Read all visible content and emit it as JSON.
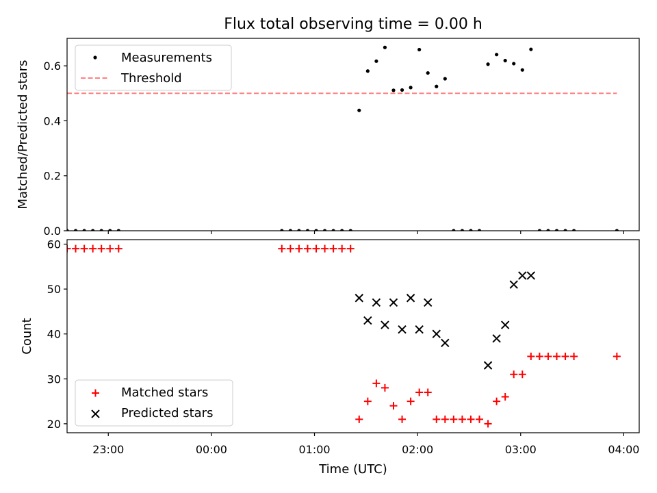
{
  "title": "Flux total observing time = 0.00 h",
  "colors": {
    "measurement": "#000000",
    "threshold": "#ff8080",
    "matched": "#ff0000",
    "predicted": "#000000",
    "axes": "#000000"
  },
  "chart_data": [
    {
      "type": "scatter",
      "ylabel": "Matched/Predicted stars",
      "ylim": [
        0,
        0.7
      ],
      "yticks": [
        "0.0",
        "0.2",
        "0.4",
        "0.6"
      ],
      "legend": {
        "placement": "top-left",
        "entries": [
          "Measurements",
          "Threshold"
        ]
      },
      "threshold": {
        "name": "Threshold",
        "value": 0.5,
        "x_range": [
          "22:36",
          "03:56"
        ]
      },
      "series": [
        {
          "name": "Measurements",
          "points": [
            [
              "22:36",
              0.0
            ],
            [
              "22:41",
              0.0
            ],
            [
              "22:46",
              0.0
            ],
            [
              "22:51",
              0.0
            ],
            [
              "22:56",
              0.0
            ],
            [
              "23:01",
              0.0
            ],
            [
              "23:06",
              0.0
            ],
            [
              "00:41",
              0.0
            ],
            [
              "00:46",
              0.0
            ],
            [
              "00:51",
              0.0
            ],
            [
              "00:56",
              0.0
            ],
            [
              "01:01",
              0.0
            ],
            [
              "01:06",
              0.0
            ],
            [
              "01:11",
              0.0
            ],
            [
              "01:16",
              0.0
            ],
            [
              "01:21",
              0.0
            ],
            [
              "01:26",
              0.438
            ],
            [
              "01:31",
              0.581
            ],
            [
              "01:36",
              0.617
            ],
            [
              "01:41",
              0.667
            ],
            [
              "01:46",
              0.511
            ],
            [
              "01:51",
              0.512
            ],
            [
              "01:56",
              0.521
            ],
            [
              "02:01",
              0.659
            ],
            [
              "02:06",
              0.574
            ],
            [
              "02:11",
              0.525
            ],
            [
              "02:16",
              0.553
            ],
            [
              "02:21",
              0.0
            ],
            [
              "02:26",
              0.0
            ],
            [
              "02:31",
              0.0
            ],
            [
              "02:36",
              0.0
            ],
            [
              "02:41",
              0.606
            ],
            [
              "02:46",
              0.641
            ],
            [
              "02:51",
              0.619
            ],
            [
              "02:56",
              0.608
            ],
            [
              "03:01",
              0.585
            ],
            [
              "03:06",
              0.66
            ],
            [
              "03:11",
              0.0
            ],
            [
              "03:16",
              0.0
            ],
            [
              "03:21",
              0.0
            ],
            [
              "03:26",
              0.0
            ],
            [
              "03:31",
              0.0
            ],
            [
              "03:56",
              0.0
            ]
          ]
        }
      ]
    },
    {
      "type": "scatter",
      "xlabel": "Time (UTC)",
      "ylabel": "Count",
      "ylim": [
        18,
        61
      ],
      "yticks": [
        "20",
        "30",
        "40",
        "50",
        "60"
      ],
      "xticks": [
        "23:00",
        "00:00",
        "01:00",
        "02:00",
        "03:00",
        "04:00"
      ],
      "legend": {
        "placement": "bottom-left",
        "entries": [
          "Matched stars",
          "Predicted stars"
        ]
      },
      "series": [
        {
          "name": "Matched stars",
          "points": [
            [
              "22:36",
              59
            ],
            [
              "22:41",
              59
            ],
            [
              "22:46",
              59
            ],
            [
              "22:51",
              59
            ],
            [
              "22:56",
              59
            ],
            [
              "23:01",
              59
            ],
            [
              "23:06",
              59
            ],
            [
              "00:41",
              59
            ],
            [
              "00:46",
              59
            ],
            [
              "00:51",
              59
            ],
            [
              "00:56",
              59
            ],
            [
              "01:01",
              59
            ],
            [
              "01:06",
              59
            ],
            [
              "01:11",
              59
            ],
            [
              "01:16",
              59
            ],
            [
              "01:21",
              59
            ],
            [
              "01:26",
              21
            ],
            [
              "01:31",
              25
            ],
            [
              "01:36",
              29
            ],
            [
              "01:41",
              28
            ],
            [
              "01:46",
              24
            ],
            [
              "01:51",
              21
            ],
            [
              "01:56",
              25
            ],
            [
              "02:01",
              27
            ],
            [
              "02:06",
              27
            ],
            [
              "02:11",
              21
            ],
            [
              "02:16",
              21
            ],
            [
              "02:21",
              21
            ],
            [
              "02:26",
              21
            ],
            [
              "02:31",
              21
            ],
            [
              "02:36",
              21
            ],
            [
              "02:41",
              20
            ],
            [
              "02:46",
              25
            ],
            [
              "02:51",
              26
            ],
            [
              "02:56",
              31
            ],
            [
              "03:01",
              31
            ],
            [
              "03:06",
              35
            ],
            [
              "03:11",
              35
            ],
            [
              "03:16",
              35
            ],
            [
              "03:21",
              35
            ],
            [
              "03:26",
              35
            ],
            [
              "03:31",
              35
            ],
            [
              "03:56",
              35
            ]
          ]
        },
        {
          "name": "Predicted stars",
          "points": [
            [
              "01:26",
              48
            ],
            [
              "01:31",
              43
            ],
            [
              "01:36",
              47
            ],
            [
              "01:41",
              42
            ],
            [
              "01:46",
              47
            ],
            [
              "01:51",
              41
            ],
            [
              "01:56",
              48
            ],
            [
              "02:01",
              41
            ],
            [
              "02:06",
              47
            ],
            [
              "02:11",
              40
            ],
            [
              "02:16",
              38
            ],
            [
              "02:41",
              33
            ],
            [
              "02:46",
              39
            ],
            [
              "02:51",
              42
            ],
            [
              "02:56",
              51
            ],
            [
              "03:01",
              53
            ],
            [
              "03:06",
              53
            ]
          ]
        }
      ]
    }
  ]
}
